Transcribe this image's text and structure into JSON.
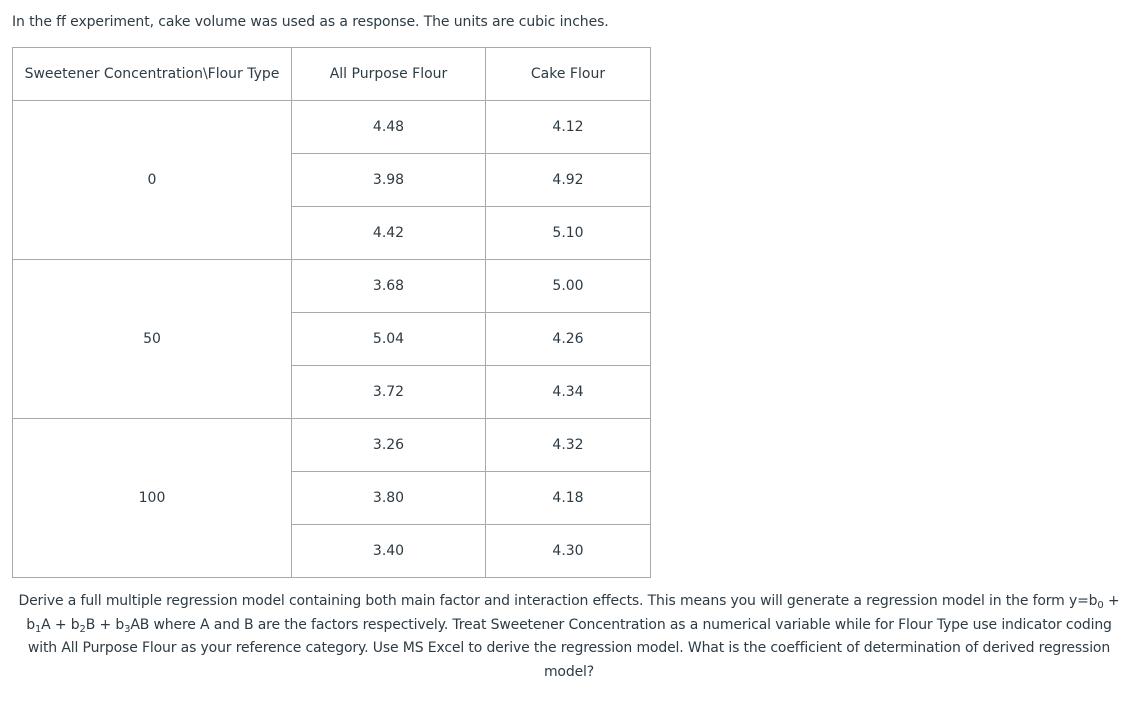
{
  "intro": "In the ff experiment, cake volume was used as a response. The units are cubic inches.",
  "table": {
    "headers": [
      "Sweetener Concentration\\Flour Type",
      "All Purpose Flour",
      "Cake Flour"
    ],
    "groups": [
      {
        "concentration": "0",
        "rows": [
          {
            "all_purpose": "4.48",
            "cake": "4.12"
          },
          {
            "all_purpose": "3.98",
            "cake": "4.92"
          },
          {
            "all_purpose": "4.42",
            "cake": "5.10"
          }
        ]
      },
      {
        "concentration": "50",
        "rows": [
          {
            "all_purpose": "3.68",
            "cake": "5.00"
          },
          {
            "all_purpose": "5.04",
            "cake": "4.26"
          },
          {
            "all_purpose": "3.72",
            "cake": "4.34"
          }
        ]
      },
      {
        "concentration": "100",
        "rows": [
          {
            "all_purpose": "3.26",
            "cake": "4.32"
          },
          {
            "all_purpose": "3.80",
            "cake": "4.18"
          },
          {
            "all_purpose": "3.40",
            "cake": "4.30"
          }
        ]
      }
    ]
  },
  "question": {
    "part1": "Derive a full multiple regression model containing both main factor and interaction effects. This means you will generate a regression model in the form y=b",
    "sub0": "0",
    "part2": " + b",
    "sub1": "1",
    "part3": "A + b",
    "sub2": "2",
    "part4": "B + b",
    "sub3": "3",
    "part5": "AB where A and B are the factors respectively. Treat Sweetener Concentration as a numerical variable while for Flour Type use indicator coding with All Purpose Flour as your reference category. Use MS Excel to derive the regression model.  What is the coefficient of determination of derived regression model?"
  }
}
